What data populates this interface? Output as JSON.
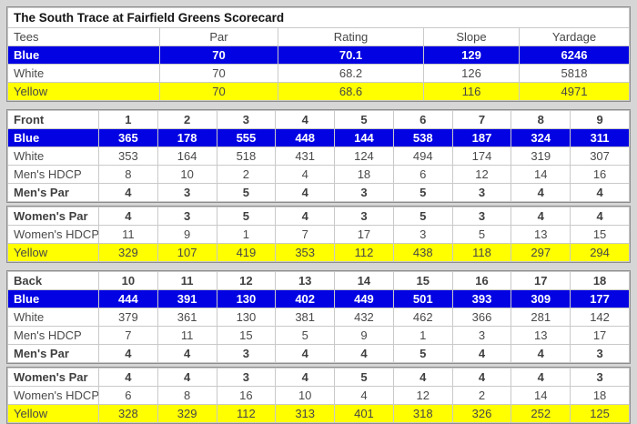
{
  "title": "The South Trace at Fairfield Greens Scorecard",
  "colors": {
    "blue_row_bg": "#0202e2",
    "blue_row_text": "#ffffff",
    "yellow_row_bg": "#ffff00",
    "body_text": "#474747",
    "page_bg": "#d6d6d6"
  },
  "summary": {
    "rows": [
      {
        "name": "column-header-row",
        "style": "head",
        "label": "Tees",
        "values": [
          "Par",
          "Rating",
          "Slope",
          "Yardage"
        ]
      },
      {
        "name": "tee-row-blue",
        "style": "blue",
        "label": "Blue",
        "values": [
          "70",
          "70.1",
          "129",
          "6246"
        ]
      },
      {
        "name": "tee-row-white",
        "style": "white",
        "label": "White",
        "values": [
          "70",
          "68.2",
          "126",
          "5818"
        ]
      },
      {
        "name": "tee-row-yellow",
        "style": "yellow",
        "label": "Yellow",
        "values": [
          "70",
          "68.6",
          "116",
          "4971"
        ]
      }
    ]
  },
  "front": {
    "men_rows": [
      {
        "name": "hole-number-row",
        "style": "holes",
        "label": "Front",
        "values": [
          "1",
          "2",
          "3",
          "4",
          "5",
          "6",
          "7",
          "8",
          "9"
        ]
      },
      {
        "name": "blue-yardage-row",
        "style": "blue",
        "label": "Blue",
        "values": [
          "365",
          "178",
          "555",
          "448",
          "144",
          "538",
          "187",
          "324",
          "311"
        ]
      },
      {
        "name": "white-yardage-row",
        "style": "white",
        "label": "White",
        "values": [
          "353",
          "164",
          "518",
          "431",
          "124",
          "494",
          "174",
          "319",
          "307"
        ]
      },
      {
        "name": "mens-hdcp-row",
        "style": "hdcp",
        "label": "Men's HDCP",
        "values": [
          "8",
          "10",
          "2",
          "4",
          "18",
          "6",
          "12",
          "14",
          "16"
        ]
      },
      {
        "name": "mens-par-row",
        "style": "par",
        "label": "Men's Par",
        "values": [
          "4",
          "3",
          "5",
          "4",
          "3",
          "5",
          "3",
          "4",
          "4"
        ]
      }
    ],
    "women_rows": [
      {
        "name": "womens-par-row",
        "style": "par",
        "label": "Women's Par",
        "values": [
          "4",
          "3",
          "5",
          "4",
          "3",
          "5",
          "3",
          "4",
          "4"
        ]
      },
      {
        "name": "womens-hdcp-row",
        "style": "hdcp",
        "label": "Women's HDCP",
        "values": [
          "11",
          "9",
          "1",
          "7",
          "17",
          "3",
          "5",
          "13",
          "15"
        ]
      },
      {
        "name": "yellow-yardage-row",
        "style": "yellow",
        "label": "Yellow",
        "values": [
          "329",
          "107",
          "419",
          "353",
          "112",
          "438",
          "118",
          "297",
          "294"
        ]
      }
    ]
  },
  "back": {
    "men_rows": [
      {
        "name": "hole-number-row",
        "style": "holes",
        "label": "Back",
        "values": [
          "10",
          "11",
          "12",
          "13",
          "14",
          "15",
          "16",
          "17",
          "18"
        ]
      },
      {
        "name": "blue-yardage-row",
        "style": "blue",
        "label": "Blue",
        "values": [
          "444",
          "391",
          "130",
          "402",
          "449",
          "501",
          "393",
          "309",
          "177"
        ]
      },
      {
        "name": "white-yardage-row",
        "style": "white",
        "label": "White",
        "values": [
          "379",
          "361",
          "130",
          "381",
          "432",
          "462",
          "366",
          "281",
          "142"
        ]
      },
      {
        "name": "mens-hdcp-row",
        "style": "hdcp",
        "label": "Men's HDCP",
        "values": [
          "7",
          "11",
          "15",
          "5",
          "9",
          "1",
          "3",
          "13",
          "17"
        ]
      },
      {
        "name": "mens-par-row",
        "style": "par",
        "label": "Men's Par",
        "values": [
          "4",
          "4",
          "3",
          "4",
          "4",
          "5",
          "4",
          "4",
          "3"
        ]
      }
    ],
    "women_rows": [
      {
        "name": "womens-par-row",
        "style": "par",
        "label": "Women's Par",
        "values": [
          "4",
          "4",
          "3",
          "4",
          "5",
          "4",
          "4",
          "4",
          "3"
        ]
      },
      {
        "name": "womens-hdcp-row",
        "style": "hdcp",
        "label": "Women's HDCP",
        "values": [
          "6",
          "8",
          "16",
          "10",
          "4",
          "12",
          "2",
          "14",
          "18"
        ]
      },
      {
        "name": "yellow-yardage-row",
        "style": "yellow",
        "label": "Yellow",
        "values": [
          "328",
          "329",
          "112",
          "313",
          "401",
          "318",
          "326",
          "252",
          "125"
        ]
      }
    ]
  }
}
